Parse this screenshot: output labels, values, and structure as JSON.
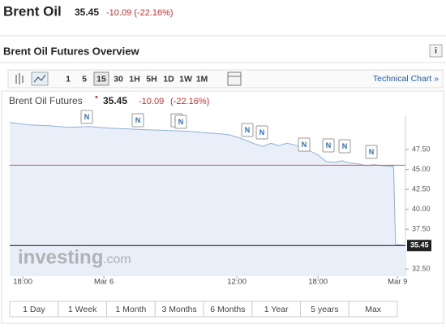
{
  "header": {
    "title": "Brent Oil",
    "price": "35.45",
    "change": "-10.09 (-22.16%)"
  },
  "section": {
    "title": "Brent Oil Futures Overview",
    "info_icon": "i"
  },
  "toolbar": {
    "intervals": [
      "1",
      "5",
      "15",
      "30",
      "1H",
      "5H",
      "1D",
      "1W",
      "1M"
    ],
    "active_interval": 2,
    "link": "Technical Chart »"
  },
  "ranges": [
    "1 Day",
    "1 Week",
    "1 Month",
    "3 Months",
    "6 Months",
    "1 Year",
    "5 years",
    "Max"
  ],
  "watermark": [
    "investing",
    ".com"
  ],
  "news_marker_label": "N",
  "chart_data": {
    "type": "area",
    "title": "Brent Oil Futures",
    "last_price": 35.45,
    "change": -10.09,
    "change_pct_label": "(-22.16%)",
    "previous_close": 45.54,
    "x": [
      0,
      5,
      10,
      15,
      20,
      25,
      30,
      35,
      40,
      45,
      50,
      55,
      58,
      60,
      62,
      64,
      66,
      68,
      70,
      72,
      74,
      76,
      78,
      80,
      82,
      84,
      86,
      88,
      90,
      92,
      94,
      97,
      97.5,
      100
    ],
    "values": [
      50.9,
      50.6,
      50.5,
      50.3,
      50.4,
      50.2,
      50.1,
      50.0,
      49.9,
      49.8,
      49.6,
      49.4,
      49.0,
      48.6,
      48.2,
      47.9,
      48.3,
      48.0,
      48.3,
      48.1,
      47.7,
      47.3,
      46.8,
      46.0,
      45.9,
      46.1,
      45.8,
      45.7,
      45.5,
      45.6,
      45.5,
      45.4,
      35.6,
      35.45
    ],
    "color": "#8fb0d6",
    "xlim": [
      0,
      100
    ],
    "xticks": [
      {
        "value": 3.3,
        "label": "18:00"
      },
      {
        "value": 23.8,
        "label": "Mar 6"
      },
      {
        "value": 57.4,
        "label": "12:00"
      },
      {
        "value": 77.9,
        "label": "18:00"
      },
      {
        "value": 98,
        "label": "Mar 9"
      }
    ],
    "ylim": [
      31.6,
      51.7
    ],
    "yticks": [
      {
        "value": 32.5,
        "label": "32.50"
      },
      {
        "value": 37.5,
        "label": "37.50"
      },
      {
        "value": 40,
        "label": "40.00"
      },
      {
        "value": 42.5,
        "label": "42.50"
      },
      {
        "value": 45,
        "label": "45.00"
      },
      {
        "value": 47.5,
        "label": "47.50"
      }
    ]
  }
}
